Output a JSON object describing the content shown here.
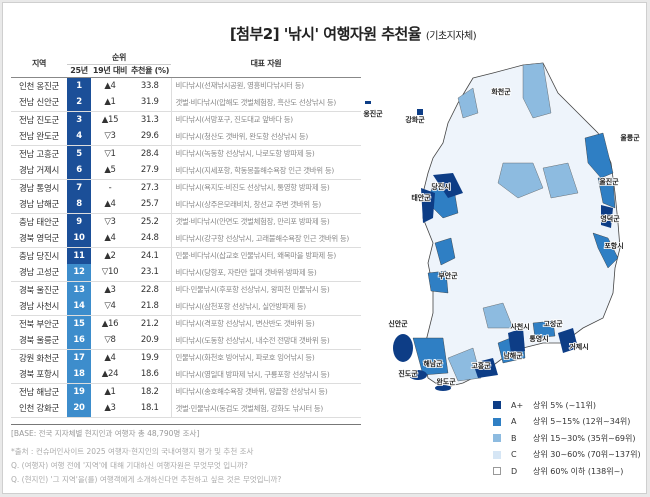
{
  "title": {
    "main": "[첨부2] '낚시'  여행자원 추천율",
    "sub": "(기초지자체)"
  },
  "table": {
    "headers": {
      "region": "지역",
      "rank_group": "순위",
      "rank25": "25년",
      "vs19": "19년 대비",
      "rate": "추천율 (%)",
      "resource": "대표 자원"
    },
    "rows": [
      [
        "인천 옹진군",
        "1",
        "▲4",
        "33.8",
        "비다낚시(선재낚시공원, 영흥비다낚시터 등)"
      ],
      [
        "전남 신안군",
        "2",
        "▲1",
        "31.9",
        "갯벌·비다낚시(압해도 갯벌체험장, 흑산도 선상낚시 등)"
      ],
      [
        "전남 진도군",
        "3",
        "▲15",
        "31.3",
        "비다낚시(서망포구, 진도대교 앞바다 등)"
      ],
      [
        "전남 완도군",
        "4",
        "▽3",
        "29.6",
        "비다낚시(청산도 갯바위, 완도항 선상낚시 등)"
      ],
      [
        "전남 고흥군",
        "5",
        "▽1",
        "28.4",
        "비다낚시(녹동항 선상낚시, 나로도항 방파제 등)"
      ],
      [
        "경남 거제시",
        "6",
        "▲5",
        "27.9",
        "비다낚시(지세포항, 학동몽돌해수욕장 인근 갯바위 등)"
      ],
      [
        "경남 통영시",
        "7",
        "-",
        "27.3",
        "비다낚시(욕지도·비진도 선상낚시, 통영항 방파제 등)"
      ],
      [
        "경남 남해군",
        "8",
        "▲4",
        "25.7",
        "비다낚시(상주은모래비치, 창선교 주변 갯바위 등)"
      ],
      [
        "충남 태안군",
        "9",
        "▽3",
        "25.2",
        "갯벌·비다낚시(안면도 갯벌체험장, 만리포 방파제 등)"
      ],
      [
        "경북 영덕군",
        "10",
        "▲4",
        "24.8",
        "비다낚시(강구항 선상낚시, 고래불해수욕장 인근 갯바위 등)"
      ],
      [
        "충남 당진시",
        "11",
        "▲2",
        "24.1",
        "민물·비다낚시(삽교호 민물낚시터, 왜목마을 방파제 등)"
      ],
      [
        "경남 고성군",
        "12",
        "▽10",
        "23.1",
        "비다낚시(당항포, 자란만 일대 갯바위·방파제 등)"
      ],
      [
        "경북 울진군",
        "13",
        "▲3",
        "22.8",
        "비다·민물낚시(후포항 선상낚시, 왕피천 민물낚시 등)"
      ],
      [
        "경남 사천시",
        "14",
        "▽4",
        "21.8",
        "비다낚시(삼천포항 선상낚시, 실안방파제 등)"
      ],
      [
        "전북 부안군",
        "15",
        "▲16",
        "21.2",
        "비다낚시(격포항 선상낚시, 변산반도 갯바위 등)"
      ],
      [
        "경북 울릉군",
        "16",
        "▽8",
        "20.9",
        "비다낚시(도동항 선상낚시, 내수전 전망대 갯바위 등)"
      ],
      [
        "강원 화천군",
        "17",
        "▲4",
        "19.9",
        "민물낚시(화천호 빙어낚시, 파로호 잉어낚시 등)"
      ],
      [
        "경북 포항시",
        "18",
        "▲24",
        "18.6",
        "비다낚시(영일대 방파제 낚시, 구룡포항 선상낚시 등)"
      ],
      [
        "전남 해남군",
        "19",
        "▲1",
        "18.2",
        "비다낚시(송호해수욕장 갯바위, 땅끝항 선상낚시 등)"
      ],
      [
        "인천 강화군",
        "20",
        "▲3",
        "18.1",
        "갯벌·민물낚시(동검도 갯벌체험, 강화도 낚시터 등)"
      ]
    ]
  },
  "base": "[BASE: 전국 지자체별 현지인과 여행자 총 48,790명 조사]",
  "notes": [
    "*출처 :  컨슈머인사이트 2025 여행자·현지인의 국내여행지 평가 및 추천 조사",
    "Q. (여행자) 여행 전에 '지역'에 대해 기대하신 여행자원은 무엇무엇 입니까?",
    "Q. (현지인) '그 지역'을(를) 여행객에게 소개하신다면 추천하고 싶은 것은 무엇입니까?"
  ],
  "map_labels": [
    "화천군",
    "강화군",
    "옹진군",
    "울릉군",
    "울진군",
    "영덕군",
    "포항시",
    "당진시",
    "태안군",
    "부안군",
    "신안군",
    "진도군",
    "해남군",
    "완도군",
    "고흥군",
    "남해군",
    "사천시",
    "고성군",
    "통영시",
    "거제시"
  ],
  "legend": [
    {
      "grade": "A+",
      "desc": "상위 5% (~11위)",
      "color": "#0d3d86"
    },
    {
      "grade": "A",
      "desc": "상위 5~15% (12위~34위)",
      "color": "#2f7fc4"
    },
    {
      "grade": "B",
      "desc": "상위 15~30% (35위~69위)",
      "color": "#8dbbe0"
    },
    {
      "grade": "C",
      "desc": "상위 30~60% (70위~137위)",
      "color": "#d6e6f5"
    },
    {
      "grade": "D",
      "desc": "상위 60% 이하 (138위~)",
      "color": "#ffffff"
    }
  ],
  "colors": {
    "rank_top": "#1b4f98",
    "rank_second": "#3d8dcc"
  }
}
